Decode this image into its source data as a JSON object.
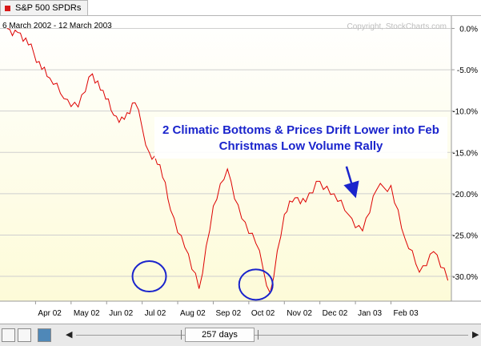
{
  "tab": {
    "title": "S&P 500 SPDRs",
    "marker_color": "#d81818"
  },
  "chart_data": {
    "type": "line",
    "title": "6 March 2002 - 12 March 2003",
    "copyright": "Copyright, StockCharts.com",
    "series": [
      {
        "name": "S&P 500 SPDRs (percent change)",
        "color": "#dd0000",
        "x": [
          0,
          0.3,
          0.6,
          0.9,
          1.2,
          1.6,
          2.0,
          2.4,
          2.7,
          3.0,
          3.3,
          3.6,
          4.0,
          4.3,
          4.6,
          5.0,
          5.4,
          5.8,
          6.2,
          6.6,
          7.0,
          7.4,
          7.8,
          8.1,
          8.4,
          8.8,
          9.2,
          9.6,
          10.0,
          10.4,
          10.8,
          11.2,
          11.6,
          12.0,
          12.4
        ],
        "values": [
          0.0,
          -0.5,
          -2.0,
          -4.0,
          -6.0,
          -8.5,
          -9.5,
          -5.5,
          -7.5,
          -10.5,
          -11.0,
          -9.0,
          -15.0,
          -16.5,
          -22.0,
          -26.5,
          -31.5,
          -21.5,
          -17.0,
          -23.0,
          -26.0,
          -32.0,
          -22.5,
          -20.5,
          -21.0,
          -18.5,
          -20.0,
          -22.5,
          -24.5,
          -19.5,
          -19.0,
          -25.5,
          -29.5,
          -27.0,
          -30.5
        ]
      }
    ],
    "x_tick_labels": [
      "Apr 02",
      "May 02",
      "Jun 02",
      "Jul 02",
      "Aug 02",
      "Sep 02",
      "Oct 02",
      "Nov 02",
      "Dec 02",
      "Jan 03",
      "Feb 03"
    ],
    "x_tick_values": [
      0.8,
      1.8,
      2.8,
      3.8,
      4.8,
      5.8,
      6.8,
      7.8,
      8.8,
      9.8,
      10.8
    ],
    "y_ticks": [
      0,
      -5,
      -10,
      -15,
      -20,
      -25,
      -30
    ],
    "y_tick_labels": [
      "0.0%",
      "-5.0%",
      "-10.0%",
      "-15.0%",
      "-20.0%",
      "-25.0%",
      "-30.0%"
    ],
    "xlim": [
      -0.2,
      12.5
    ],
    "ylim": [
      -33,
      1.5
    ],
    "annotation": {
      "line1": "2 Climatic Bottoms & Prices Drift Lower into Feb",
      "line2": "Christmas Low Volume Rally",
      "color": "#1a24cc"
    },
    "circles": [
      {
        "x": 4.0,
        "y": -30.0
      },
      {
        "x": 7.0,
        "y": -31.0
      }
    ],
    "arrow": {
      "x": 9.75,
      "y": -20.0
    }
  },
  "bottom_bar": {
    "days_label": "257 days"
  }
}
